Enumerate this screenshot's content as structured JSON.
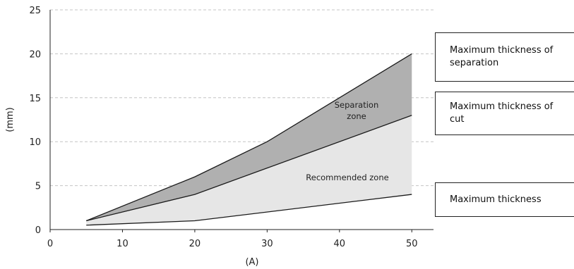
{
  "chart_data": {
    "type": "area",
    "xlabel": "(A)",
    "ylabel": "(mm)",
    "xlim": [
      0,
      53
    ],
    "ylim": [
      0,
      25
    ],
    "xticks": [
      0,
      10,
      20,
      30,
      40,
      50
    ],
    "yticks": [
      0,
      5,
      10,
      15,
      20,
      25
    ],
    "grid": "horizontal dashed",
    "series": [
      {
        "name": "Maximum thickness of separation",
        "x": [
          5,
          20,
          30,
          50
        ],
        "y": [
          1,
          6,
          10,
          20
        ]
      },
      {
        "name": "Maximum thickness of cut",
        "x": [
          5,
          20,
          30,
          50
        ],
        "y": [
          1,
          4,
          7,
          13
        ]
      },
      {
        "name": "Maximum thickness",
        "x": [
          5,
          20,
          50
        ],
        "y": [
          0.5,
          1,
          4
        ]
      }
    ],
    "zones": [
      {
        "label": "Separation zone",
        "label_lines": [
          "Separation",
          "zone"
        ],
        "between": [
          "Maximum thickness of cut",
          "Maximum thickness of separation"
        ],
        "color": "#b0b0b0"
      },
      {
        "label": "Recommended zone",
        "label_lines": [
          "Recommended zone"
        ],
        "between": [
          "Maximum thickness",
          "Maximum thickness of cut"
        ],
        "color": "#e6e6e6"
      }
    ]
  },
  "legend": {
    "items": [
      {
        "text": "Maximum thickness of separation"
      },
      {
        "text": "Maximum thickness of cut"
      },
      {
        "text": "Maximum thickness"
      }
    ]
  }
}
